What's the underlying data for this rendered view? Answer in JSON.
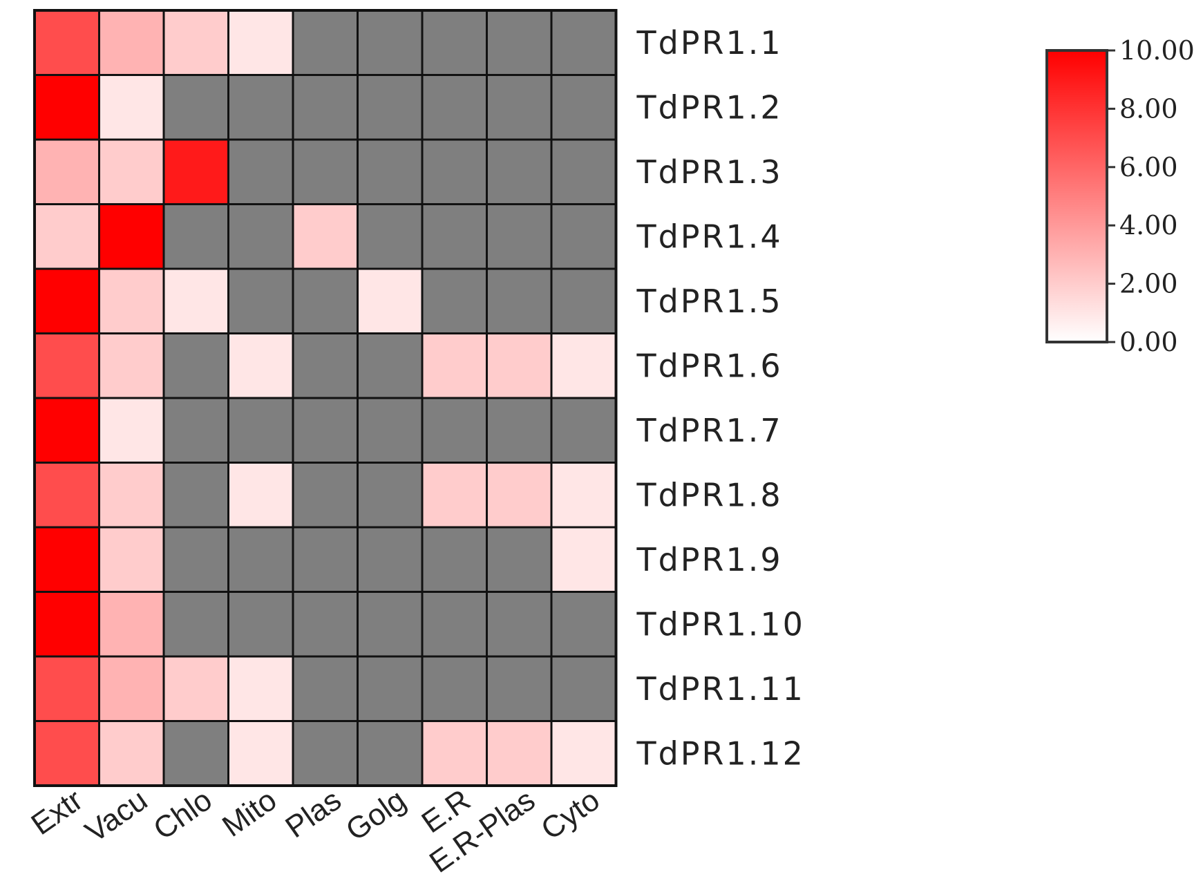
{
  "chart_data": {
    "type": "heatmap",
    "columns": [
      "Extr",
      "Vacu",
      "Chlo",
      "Mito",
      "Plas",
      "Golg",
      "E.R",
      "E.R-Plas",
      "Cyto"
    ],
    "rows": [
      "TdPR1.1",
      "TdPR1.2",
      "TdPR1.3",
      "TdPR1.4",
      "TdPR1.5",
      "TdPR1.6",
      "TdPR1.7",
      "TdPR1.8",
      "TdPR1.9",
      "TdPR1.10",
      "TdPR1.11",
      "TdPR1.12"
    ],
    "values": [
      [
        7,
        3,
        2,
        1,
        null,
        null,
        null,
        null,
        null
      ],
      [
        10,
        1,
        null,
        null,
        null,
        null,
        null,
        null,
        null
      ],
      [
        3,
        2,
        9,
        null,
        null,
        null,
        null,
        null,
        null
      ],
      [
        2,
        10,
        null,
        null,
        2,
        null,
        null,
        null,
        null
      ],
      [
        10,
        2,
        1,
        null,
        null,
        1,
        null,
        null,
        null
      ],
      [
        7,
        2,
        null,
        1,
        null,
        null,
        2,
        2,
        1
      ],
      [
        10,
        1,
        null,
        null,
        null,
        null,
        null,
        null,
        null
      ],
      [
        7,
        2,
        null,
        1,
        null,
        null,
        2,
        2,
        1
      ],
      [
        10,
        2,
        null,
        null,
        null,
        null,
        null,
        null,
        1
      ],
      [
        10,
        3,
        null,
        null,
        null,
        null,
        null,
        null,
        null
      ],
      [
        7,
        3,
        2,
        1,
        null,
        null,
        null,
        null,
        null
      ],
      [
        7,
        2,
        null,
        1,
        null,
        null,
        2,
        2,
        1
      ]
    ],
    "scale": {
      "min": 0,
      "max": 10,
      "ticks": [
        "10.00",
        "8.00",
        "6.00",
        "4.00",
        "2.00",
        "0.00"
      ],
      "low_color": "#ffffff",
      "high_color": "#ff0000"
    },
    "missing_color": "#7f7f7f",
    "legend": "top-right"
  }
}
